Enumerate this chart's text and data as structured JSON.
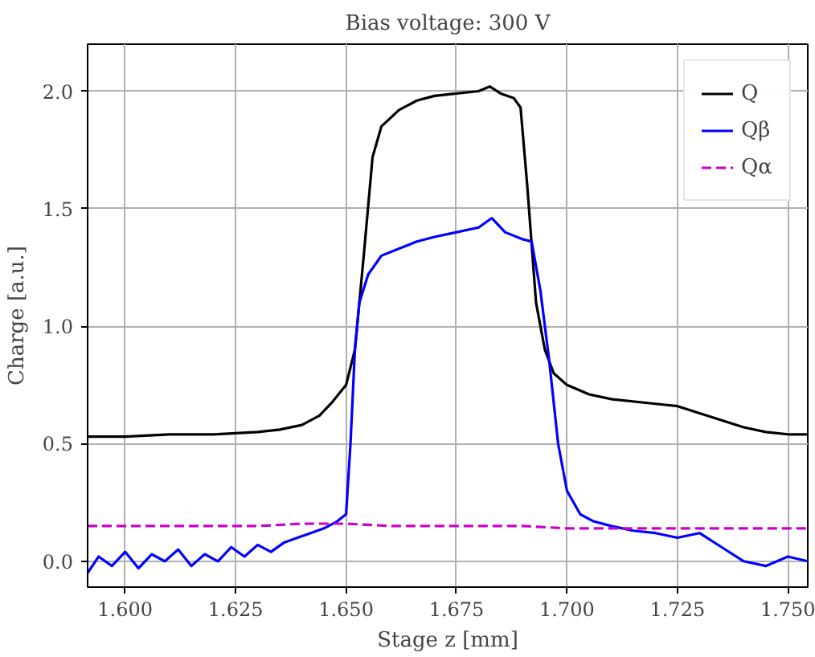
{
  "chart_data": {
    "type": "line",
    "title": "Bias voltage: 300 V",
    "xlabel": "Stage z [mm]",
    "ylabel": "Charge [a.u.]",
    "xlim": [
      1.5915,
      1.7545
    ],
    "ylim": [
      -0.11,
      2.2
    ],
    "xticks": [
      {
        "value": 1.6,
        "label": "1.600"
      },
      {
        "value": 1.625,
        "label": "1.625"
      },
      {
        "value": 1.65,
        "label": "1.650"
      },
      {
        "value": 1.675,
        "label": "1.675"
      },
      {
        "value": 1.7,
        "label": "1.700"
      },
      {
        "value": 1.725,
        "label": "1.725"
      },
      {
        "value": 1.75,
        "label": "1.750"
      }
    ],
    "yticks": [
      {
        "value": 0,
        "label": "0.0"
      },
      {
        "value": 0.5,
        "label": "0.5"
      },
      {
        "value": 1,
        "label": "1.0"
      },
      {
        "value": 1.5,
        "label": "1.5"
      },
      {
        "value": 2,
        "label": "2.0"
      }
    ],
    "grid": true,
    "legend": "top right",
    "series": [
      {
        "name": "Q",
        "color": "#000000",
        "line_style": "solid",
        "x": [
          1.5915,
          1.6,
          1.61,
          1.62,
          1.63,
          1.635,
          1.64,
          1.644,
          1.647,
          1.65,
          1.652,
          1.654,
          1.656,
          1.658,
          1.662,
          1.666,
          1.67,
          1.675,
          1.68,
          1.6825,
          1.685,
          1.688,
          1.6895,
          1.691,
          1.693,
          1.695,
          1.697,
          1.7,
          1.705,
          1.71,
          1.72,
          1.725,
          1.73,
          1.735,
          1.74,
          1.745,
          1.75,
          1.7545
        ],
        "values": [
          0.53,
          0.53,
          0.54,
          0.54,
          0.55,
          0.56,
          0.58,
          0.62,
          0.68,
          0.75,
          0.9,
          1.3,
          1.72,
          1.85,
          1.92,
          1.96,
          1.98,
          1.99,
          2.0,
          2.02,
          1.99,
          1.97,
          1.93,
          1.6,
          1.1,
          0.9,
          0.8,
          0.75,
          0.71,
          0.69,
          0.67,
          0.66,
          0.63,
          0.6,
          0.57,
          0.55,
          0.54,
          0.54
        ]
      },
      {
        "name": "Qβ",
        "color": "#0000ff",
        "line_style": "solid",
        "x": [
          1.5915,
          1.594,
          1.597,
          1.6,
          1.603,
          1.606,
          1.609,
          1.612,
          1.615,
          1.618,
          1.621,
          1.624,
          1.627,
          1.63,
          1.633,
          1.636,
          1.639,
          1.642,
          1.645,
          1.648,
          1.65,
          1.651,
          1.652,
          1.653,
          1.655,
          1.658,
          1.662,
          1.666,
          1.67,
          1.675,
          1.68,
          1.683,
          1.686,
          1.69,
          1.692,
          1.694,
          1.696,
          1.698,
          1.7,
          1.703,
          1.706,
          1.71,
          1.715,
          1.72,
          1.725,
          1.73,
          1.735,
          1.74,
          1.745,
          1.75,
          1.7545
        ],
        "values": [
          -0.05,
          0.02,
          -0.02,
          0.04,
          -0.03,
          0.03,
          0.0,
          0.05,
          -0.02,
          0.03,
          0.0,
          0.06,
          0.02,
          0.07,
          0.04,
          0.08,
          0.1,
          0.12,
          0.14,
          0.17,
          0.2,
          0.5,
          0.9,
          1.1,
          1.22,
          1.3,
          1.33,
          1.36,
          1.38,
          1.4,
          1.42,
          1.46,
          1.4,
          1.37,
          1.36,
          1.15,
          0.85,
          0.5,
          0.3,
          0.2,
          0.17,
          0.15,
          0.13,
          0.12,
          0.1,
          0.12,
          0.06,
          0.0,
          -0.02,
          0.02,
          0.0
        ]
      },
      {
        "name": "Qα",
        "color": "#cc00cc",
        "line_style": "dashed",
        "x": [
          1.5915,
          1.6,
          1.61,
          1.62,
          1.63,
          1.64,
          1.65,
          1.66,
          1.67,
          1.68,
          1.69,
          1.7,
          1.71,
          1.72,
          1.73,
          1.74,
          1.75,
          1.7545
        ],
        "values": [
          0.15,
          0.15,
          0.15,
          0.15,
          0.15,
          0.16,
          0.16,
          0.15,
          0.15,
          0.15,
          0.15,
          0.14,
          0.14,
          0.14,
          0.14,
          0.14,
          0.14,
          0.14
        ]
      }
    ]
  }
}
